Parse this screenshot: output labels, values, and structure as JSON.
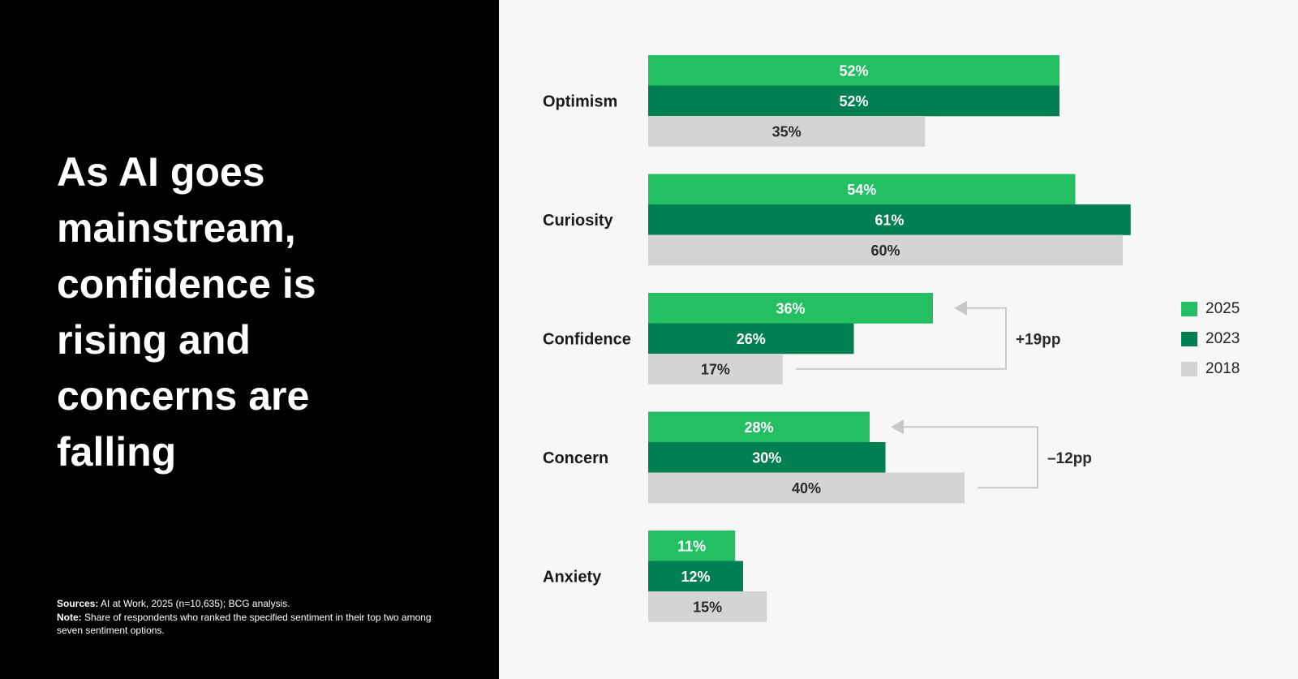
{
  "headline": "As AI goes\nmainstream,\nconfidence is\nrising and\nconcerns are\nfalling",
  "footnote": {
    "sources_label": "Sources:",
    "sources_text": "AI at Work, 2025 (n=10,635); BCG analysis.",
    "note_label": "Note:",
    "note_text": "Share of respondents who ranked the specified sentiment in their top two among seven sentiment options."
  },
  "colors": {
    "2025": "#24bf63",
    "2023": "#007f52",
    "2018": "#d4d4d4",
    "left_panel": "#000000",
    "chart_bg": "#f7f7f7",
    "arrow": "#c8c8c8"
  },
  "chart_data": {
    "type": "bar",
    "orientation": "horizontal",
    "categories": [
      "Optimism",
      "Curiosity",
      "Confidence",
      "Concern",
      "Anxiety"
    ],
    "series": [
      {
        "name": "2025",
        "values": [
          52,
          54,
          36,
          28,
          11
        ]
      },
      {
        "name": "2023",
        "values": [
          52,
          61,
          26,
          30,
          12
        ]
      },
      {
        "name": "2018",
        "values": [
          35,
          60,
          17,
          40,
          15
        ]
      }
    ],
    "unit": "%",
    "xlim": [
      0,
      100
    ],
    "grid": false,
    "legend_position": "right",
    "annotations": [
      {
        "category": "Confidence",
        "from_series": "2018",
        "to_series": "2025",
        "text": "+19pp"
      },
      {
        "category": "Concern",
        "from_series": "2018",
        "to_series": "2025",
        "text": "–12pp"
      }
    ]
  }
}
